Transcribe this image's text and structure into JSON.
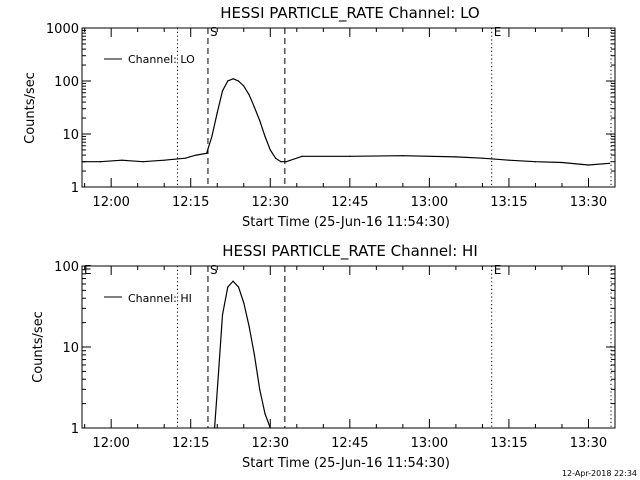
{
  "footer": {
    "timestamp": "12-Apr-2018 22:34"
  },
  "chart_data": [
    {
      "type": "line",
      "title": "HESSI PARTICLE_RATE Channel: LO",
      "xlabel": "Start Time (25-Jun-16 11:54:30)",
      "ylabel": "Counts/sec",
      "y_scale": "log",
      "ylim": [
        1,
        1000
      ],
      "xlim": [
        "11:54:30",
        "13:35:00"
      ],
      "x_tick_labels": [
        "12:00",
        "12:15",
        "12:30",
        "12:45",
        "13:00",
        "13:15",
        "13:30"
      ],
      "y_tick_labels": [
        "1",
        "10",
        "100",
        "1000"
      ],
      "legend": {
        "position": "top-left",
        "entries": [
          "Channel: LO"
        ]
      },
      "markers": [
        {
          "time": "12:12:30",
          "style": "dotted",
          "label": ""
        },
        {
          "time": "12:18:15",
          "style": "dashed",
          "label": "S"
        },
        {
          "time": "12:32:45",
          "style": "dashed",
          "label": ""
        },
        {
          "time": "13:11:45",
          "style": "dotted",
          "label": "E"
        },
        {
          "time": "13:34:15",
          "style": "dotted",
          "label": ""
        }
      ],
      "series": [
        {
          "x": [
            "11:54:30",
            "11:58:00",
            "12:02:00",
            "12:06:00",
            "12:10:00",
            "12:14:00",
            "12:16:00",
            "12:18:00",
            "12:19:00",
            "12:20:00",
            "12:21:00",
            "12:22:00",
            "12:23:00",
            "12:24:00",
            "12:25:00",
            "12:26:00",
            "12:27:00",
            "12:28:00",
            "12:29:00",
            "12:30:00",
            "12:31:00",
            "12:32:00",
            "12:33:00",
            "12:36:00",
            "12:45:00",
            "12:55:00",
            "13:05:00",
            "13:10:00",
            "13:15:00",
            "13:20:00",
            "13:25:00",
            "13:30:00",
            "13:34:00"
          ],
          "y": [
            3,
            3,
            3.2,
            3,
            3.2,
            3.5,
            4,
            4.3,
            9,
            25,
            65,
            100,
            110,
            100,
            80,
            55,
            32,
            18,
            9,
            5,
            3.5,
            3,
            3,
            3.8,
            3.8,
            3.9,
            3.7,
            3.5,
            3.2,
            3,
            2.9,
            2.6,
            2.8
          ]
        }
      ]
    },
    {
      "type": "line",
      "title": "HESSI PARTICLE_RATE Channel: HI",
      "xlabel": "Start Time (25-Jun-16 11:54:30)",
      "ylabel": "Counts/sec",
      "y_scale": "log",
      "ylim": [
        1,
        100
      ],
      "xlim": [
        "11:54:30",
        "13:35:00"
      ],
      "x_tick_labels": [
        "12:00",
        "12:15",
        "12:30",
        "12:45",
        "13:00",
        "13:15",
        "13:30"
      ],
      "y_tick_labels": [
        "1",
        "10",
        "100"
      ],
      "legend": {
        "position": "top-left",
        "entries": [
          "Channel: HI"
        ]
      },
      "markers": [
        {
          "time": "11:54:30",
          "style": "none",
          "label": "E"
        },
        {
          "time": "12:12:30",
          "style": "dotted",
          "label": ""
        },
        {
          "time": "12:18:15",
          "style": "dashed",
          "label": "S"
        },
        {
          "time": "12:32:45",
          "style": "dashed",
          "label": ""
        },
        {
          "time": "13:11:45",
          "style": "dotted",
          "label": "E"
        },
        {
          "time": "13:34:15",
          "style": "dotted",
          "label": ""
        }
      ],
      "series": [
        {
          "x": [
            "12:19:30",
            "12:20:15",
            "12:21:00",
            "12:22:00",
            "12:23:00",
            "12:24:00",
            "12:25:00",
            "12:26:00",
            "12:27:00",
            "12:28:00",
            "12:29:00",
            "12:30:00"
          ],
          "y": [
            1,
            5,
            25,
            55,
            65,
            55,
            35,
            18,
            8,
            3,
            1.5,
            1
          ]
        }
      ]
    }
  ]
}
